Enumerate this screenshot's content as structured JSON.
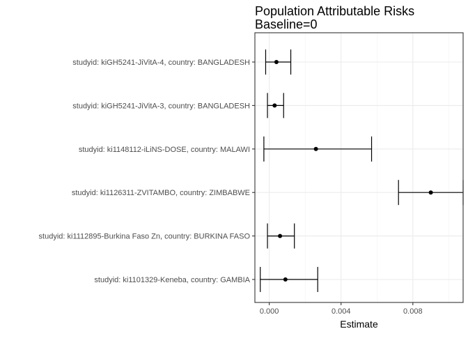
{
  "chart_data": {
    "type": "scatter",
    "title": "Population Attributable Risks",
    "subtitle": "Baseline=0",
    "xlabel": "Estimate",
    "ylabel": "",
    "xlim": [
      -0.0008,
      0.0108
    ],
    "x_ticks": [
      0.0,
      0.004,
      0.008
    ],
    "x_tick_labels": [
      "0.000",
      "0.004",
      "0.008"
    ],
    "grid": true,
    "categories": [
      "studyid: kiGH5241-JiVitA-4, country: BANGLADESH",
      "studyid: kiGH5241-JiVitA-3, country: BANGLADESH",
      "studyid: ki1148112-iLiNS-DOSE, country: MALAWI",
      "studyid: ki1126311-ZVITAMBO, country: ZIMBABWE",
      "studyid: ki1112895-Burkina Faso Zn, country: BURKINA FASO",
      "studyid: ki1101329-Keneba, country: GAMBIA"
    ],
    "estimates": [
      0.0004,
      0.0003,
      0.0026,
      0.009,
      0.0006,
      0.0009
    ],
    "lower": [
      -0.0002,
      -0.0001,
      -0.0003,
      0.0072,
      -0.0001,
      -0.0005
    ],
    "upper": [
      0.0012,
      0.0008,
      0.0057,
      0.0108,
      0.0014,
      0.0027
    ]
  }
}
